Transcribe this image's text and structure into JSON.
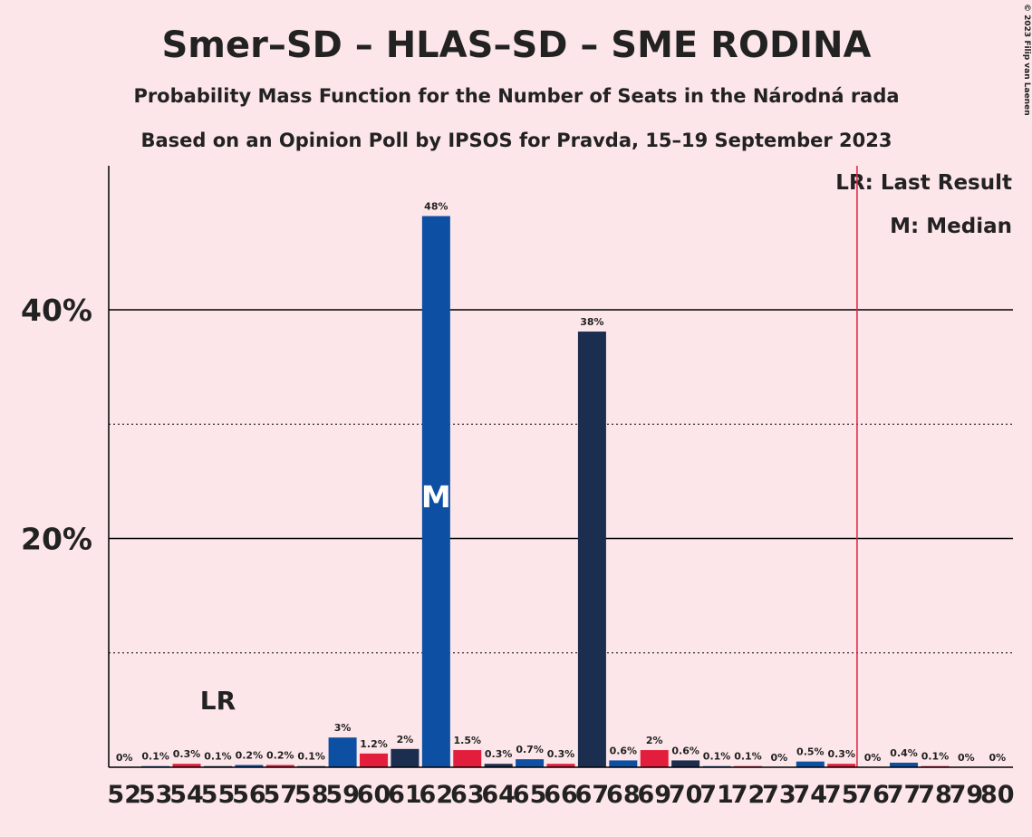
{
  "chart_data": {
    "type": "bar",
    "title": "Smer–SD – HLAS–SD – SME RODINA",
    "subtitle": "Probability Mass Function for the Number of Seats in the Národná rada",
    "subtitle2": "Based on an Opinion Poll by IPSOS for Pravda, 15–19 September 2023",
    "copyright": "© 2023 Filip van Laenen",
    "legend": [
      "LR: Last Result",
      "M: Median"
    ],
    "last_result": 55,
    "last_result_label": "LR",
    "median": 62,
    "median_label": "M",
    "majority": 76,
    "categories": [
      52,
      53,
      54,
      55,
      56,
      57,
      58,
      59,
      60,
      61,
      62,
      63,
      64,
      65,
      66,
      67,
      68,
      69,
      70,
      71,
      72,
      73,
      74,
      75,
      76,
      77,
      78,
      79,
      80
    ],
    "values": [
      0,
      0.1,
      0.3,
      0.1,
      0.2,
      0.2,
      0.1,
      2.6,
      1.2,
      1.6,
      48.2,
      1.5,
      0.3,
      0.7,
      0.3,
      38.1,
      0.6,
      1.5,
      0.6,
      0.1,
      0.1,
      0,
      0.5,
      0.3,
      0,
      0.4,
      0.1,
      0,
      0
    ],
    "value_labels": [
      "0%",
      "0.1%",
      "0.3%",
      "0.1%",
      "0.2%",
      "0.2%",
      "0.1%",
      "3%",
      "1.2%",
      "2%",
      "48%",
      "1.5%",
      "0.3%",
      "0.7%",
      "0.3%",
      "38%",
      "0.6%",
      "2%",
      "0.6%",
      "0.1%",
      "0.1%",
      "0%",
      "0.5%",
      "0.3%",
      "0%",
      "0.4%",
      "0.1%",
      "0%",
      "0%"
    ],
    "colors": [
      "#1c2e4f",
      "#0d4fa2",
      "#e31e3c",
      "#1c2e4f",
      "#0d4fa2",
      "#e31e3c",
      "#1c2e4f",
      "#0d4fa2",
      "#e31e3c",
      "#1c2e4f",
      "#0d4fa2",
      "#e31e3c",
      "#1c2e4f",
      "#0d4fa2",
      "#e31e3c",
      "#1c2e4f",
      "#0d4fa2",
      "#e31e3c",
      "#1c2e4f",
      "#0d4fa2",
      "#e31e3c",
      "#1c2e4f",
      "#0d4fa2",
      "#e31e3c",
      "#1c2e4f",
      "#0d4fa2",
      "#e31e3c",
      "#1c2e4f",
      "#0d4fa2"
    ],
    "ylim": [
      0,
      52.6
    ],
    "yticks": [
      {
        "value": 20,
        "label": "20%"
      },
      {
        "value": 40,
        "label": "40%"
      }
    ],
    "yminor": [
      10,
      30
    ]
  }
}
